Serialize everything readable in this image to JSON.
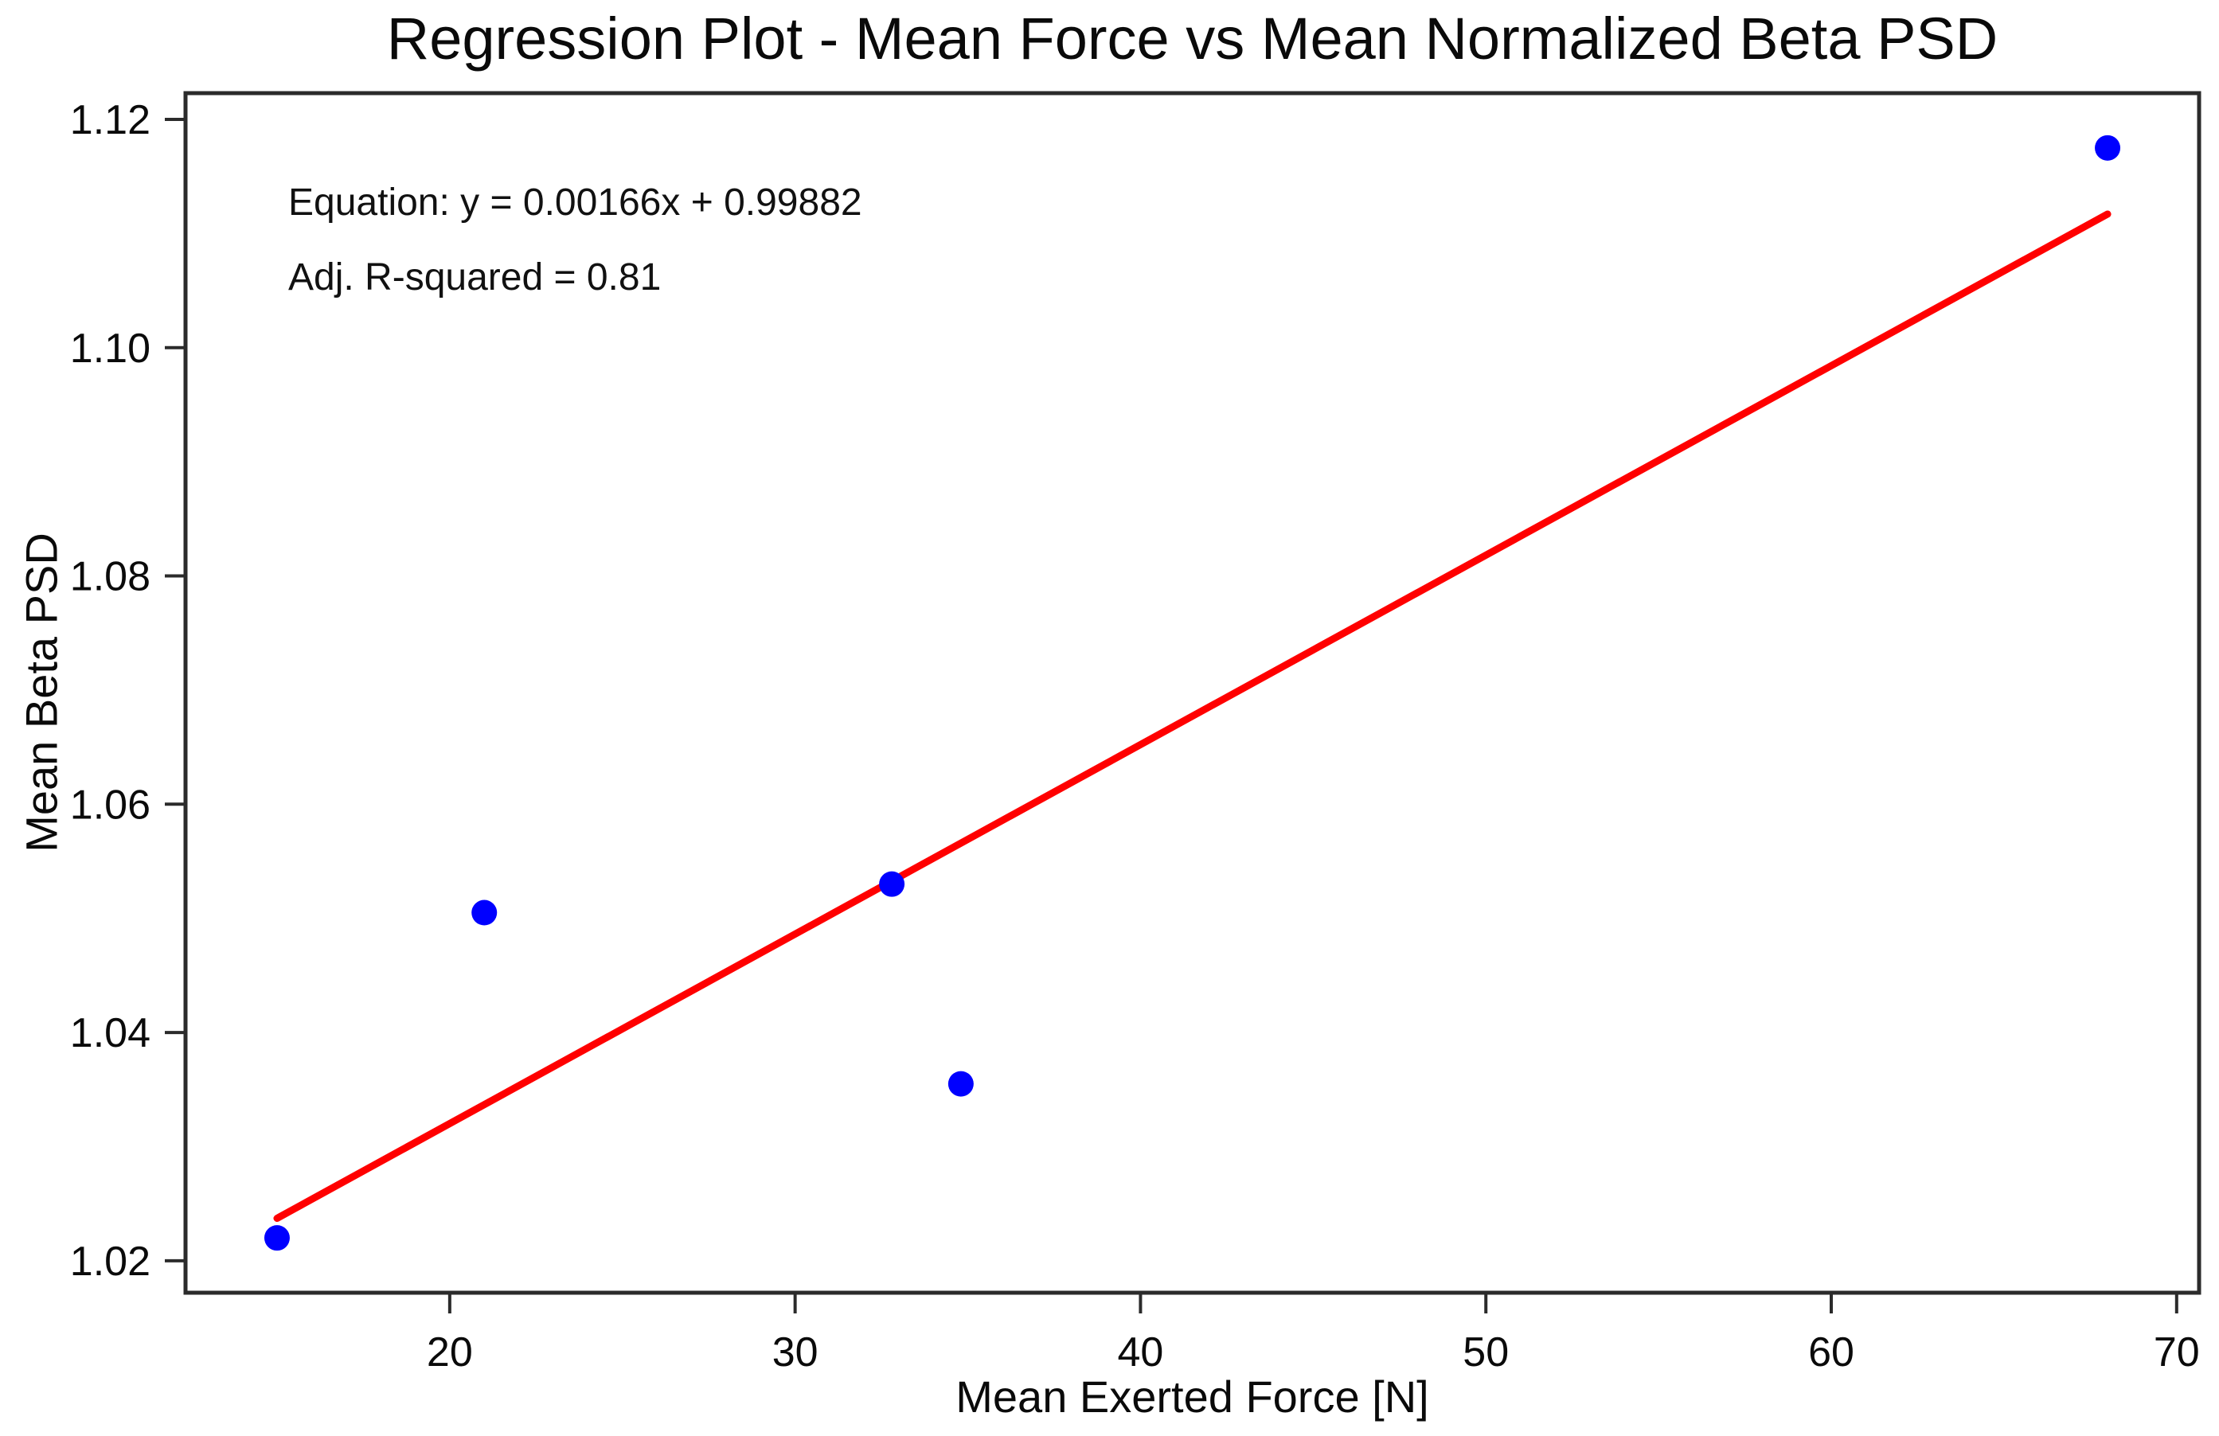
{
  "figure": {
    "background_color": "#ffffff"
  },
  "chart_data": {
    "type": "scatter",
    "title": "Regression Plot - Mean Force vs Mean Normalized Beta PSD",
    "xlabel": "Mean Exerted Force [N]",
    "ylabel": "Mean Beta PSD",
    "xlim": [
      12.35,
      70.65
    ],
    "ylim": [
      1.0172,
      1.1223
    ],
    "x_ticks": [
      20,
      30,
      40,
      50,
      60,
      70
    ],
    "x_tick_labels": [
      "20",
      "30",
      "40",
      "50",
      "60",
      "70"
    ],
    "y_ticks": [
      1.02,
      1.04,
      1.06,
      1.08,
      1.1,
      1.12
    ],
    "y_tick_labels": [
      "1.02",
      "1.04",
      "1.06",
      "1.08",
      "1.10",
      "1.12"
    ],
    "grid": false,
    "legend": "none",
    "frame_color": "#2b2b2b",
    "text_color": "#0a0a0a",
    "series": [
      {
        "name": "data-points",
        "type": "scatter",
        "color": "#0000ff",
        "marker": "circle",
        "points": [
          [
            15,
            1.022
          ],
          [
            21,
            1.0505
          ],
          [
            32.8,
            1.053
          ],
          [
            34.8,
            1.0355
          ],
          [
            68,
            1.1175
          ]
        ]
      },
      {
        "name": "regression-line",
        "type": "line",
        "color": "#ff0000",
        "slope": 0.00166,
        "intercept": 0.99882,
        "x_range": [
          15,
          68
        ]
      }
    ],
    "annotations": [
      "Equation: y = 0.00166x + 0.99882",
      "Adj. R-squared = 0.81"
    ],
    "stats": {
      "equation": "y = 0.00166x + 0.99882",
      "slope": 0.00166,
      "intercept": 0.99882,
      "adj_r_squared": 0.81
    }
  }
}
